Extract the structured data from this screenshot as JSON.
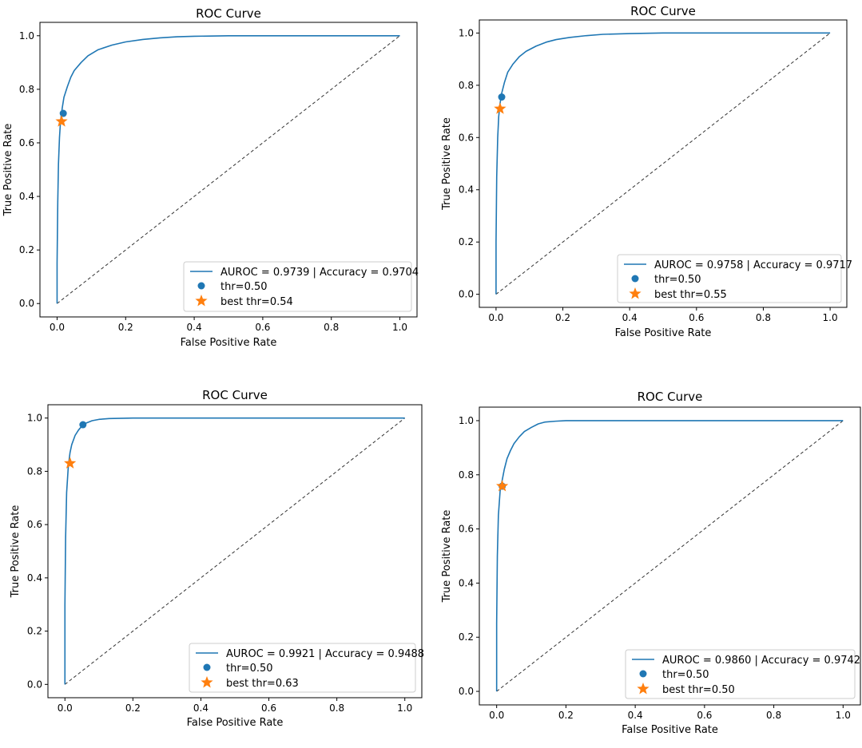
{
  "figure": {
    "type": "roc-grid",
    "rows": 2,
    "cols": 2
  },
  "colors": {
    "roc_line": "#1f77b4",
    "threshold_point": "#1f77b4",
    "best_point": "#ff7f0e",
    "chance_line": "#333333",
    "axes": "#000000"
  },
  "chart_data": [
    {
      "type": "line",
      "title": "ROC Curve",
      "xlabel": "False Positive Rate",
      "ylabel": "True Positive Rate",
      "xlim": [
        -0.05,
        1.05
      ],
      "ylim": [
        -0.05,
        1.05
      ],
      "xticks": [
        "0.0",
        "0.2",
        "0.4",
        "0.6",
        "0.8",
        "1.0"
      ],
      "yticks": [
        "0.0",
        "0.2",
        "0.4",
        "0.6",
        "0.8",
        "1.0"
      ],
      "legend_position": "lower-right",
      "series": [
        {
          "name": "AUROC = 0.9739 | Accuracy = 0.9704",
          "kind": "line",
          "x": [
            0,
            0,
            0.002,
            0.004,
            0.007,
            0.01,
            0.015,
            0.02,
            0.03,
            0.04,
            0.05,
            0.07,
            0.09,
            0.12,
            0.16,
            0.2,
            0.25,
            0.3,
            0.35,
            0.4,
            0.5,
            0.6,
            0.8,
            1.0
          ],
          "y": [
            0,
            0.15,
            0.38,
            0.52,
            0.62,
            0.68,
            0.73,
            0.77,
            0.81,
            0.845,
            0.87,
            0.9,
            0.925,
            0.948,
            0.965,
            0.977,
            0.986,
            0.992,
            0.996,
            0.998,
            1.0,
            1.0,
            1.0,
            1.0
          ]
        },
        {
          "name": "thr=0.50",
          "kind": "point",
          "x": 0.018,
          "y": 0.71
        },
        {
          "name": "best thr=0.54",
          "kind": "star",
          "x": 0.013,
          "y": 0.68
        }
      ]
    },
    {
      "type": "line",
      "title": "ROC Curve",
      "xlabel": "False Positive Rate",
      "ylabel": "True Positive Rate",
      "xlim": [
        -0.05,
        1.05
      ],
      "ylim": [
        -0.05,
        1.05
      ],
      "xticks": [
        "0.0",
        "0.2",
        "0.4",
        "0.6",
        "0.8",
        "1.0"
      ],
      "yticks": [
        "0.0",
        "0.2",
        "0.4",
        "0.6",
        "0.8",
        "1.0"
      ],
      "legend_position": "lower-right",
      "series": [
        {
          "name": "AUROC = 0.9758 | Accuracy = 0.9717",
          "kind": "line",
          "x": [
            0,
            0,
            0.002,
            0.005,
            0.008,
            0.012,
            0.017,
            0.025,
            0.035,
            0.05,
            0.07,
            0.09,
            0.12,
            0.15,
            0.18,
            0.22,
            0.27,
            0.32,
            0.4,
            0.5,
            0.7,
            1.0
          ],
          "y": [
            0,
            0.2,
            0.45,
            0.6,
            0.68,
            0.73,
            0.77,
            0.81,
            0.85,
            0.88,
            0.91,
            0.93,
            0.95,
            0.965,
            0.975,
            0.983,
            0.99,
            0.995,
            0.998,
            1.0,
            1.0,
            1.0
          ]
        },
        {
          "name": "thr=0.50",
          "kind": "point",
          "x": 0.017,
          "y": 0.755
        },
        {
          "name": "best thr=0.55",
          "kind": "star",
          "x": 0.012,
          "y": 0.71
        }
      ]
    },
    {
      "type": "line",
      "title": "ROC Curve",
      "xlabel": "False Positive Rate",
      "ylabel": "True Positive Rate",
      "xlim": [
        -0.05,
        1.05
      ],
      "ylim": [
        -0.05,
        1.05
      ],
      "xticks": [
        "0.0",
        "0.2",
        "0.4",
        "0.6",
        "0.8",
        "1.0"
      ],
      "yticks": [
        "0.0",
        "0.2",
        "0.4",
        "0.6",
        "0.8",
        "1.0"
      ],
      "legend_position": "lower-right",
      "series": [
        {
          "name": "AUROC = 0.9921 | Accuracy = 0.9488",
          "kind": "line",
          "x": [
            0,
            0,
            0.002,
            0.005,
            0.01,
            0.015,
            0.02,
            0.03,
            0.04,
            0.05,
            0.06,
            0.08,
            0.1,
            0.13,
            0.2,
            0.3,
            1.0
          ],
          "y": [
            0,
            0.3,
            0.55,
            0.72,
            0.82,
            0.87,
            0.9,
            0.935,
            0.955,
            0.97,
            0.98,
            0.99,
            0.995,
            0.998,
            1.0,
            1.0,
            1.0
          ]
        },
        {
          "name": "thr=0.50",
          "kind": "point",
          "x": 0.053,
          "y": 0.975
        },
        {
          "name": "best thr=0.63",
          "kind": "star",
          "x": 0.015,
          "y": 0.83
        }
      ]
    },
    {
      "type": "line",
      "title": "ROC Curve",
      "xlabel": "False Positive Rate",
      "ylabel": "True Positive Rate",
      "xlim": [
        -0.05,
        1.05
      ],
      "ylim": [
        -0.05,
        1.05
      ],
      "xticks": [
        "0.0",
        "0.2",
        "0.4",
        "0.6",
        "0.8",
        "1.0"
      ],
      "yticks": [
        "0.0",
        "0.2",
        "0.4",
        "0.6",
        "0.8",
        "1.0"
      ],
      "legend_position": "lower-right",
      "series": [
        {
          "name": "AUROC = 0.9860 | Accuracy = 0.9742",
          "kind": "line",
          "x": [
            0,
            0,
            0.002,
            0.005,
            0.01,
            0.016,
            0.022,
            0.03,
            0.04,
            0.05,
            0.065,
            0.08,
            0.1,
            0.12,
            0.14,
            0.17,
            0.2,
            0.3,
            1.0
          ],
          "y": [
            0,
            0.25,
            0.5,
            0.65,
            0.74,
            0.78,
            0.82,
            0.86,
            0.89,
            0.915,
            0.94,
            0.96,
            0.975,
            0.988,
            0.995,
            0.998,
            1.0,
            1.0,
            1.0
          ]
        },
        {
          "name": "thr=0.50",
          "kind": "point",
          "x": 0.016,
          "y": 0.758
        },
        {
          "name": "best thr=0.50",
          "kind": "star",
          "x": 0.016,
          "y": 0.758
        }
      ]
    }
  ]
}
